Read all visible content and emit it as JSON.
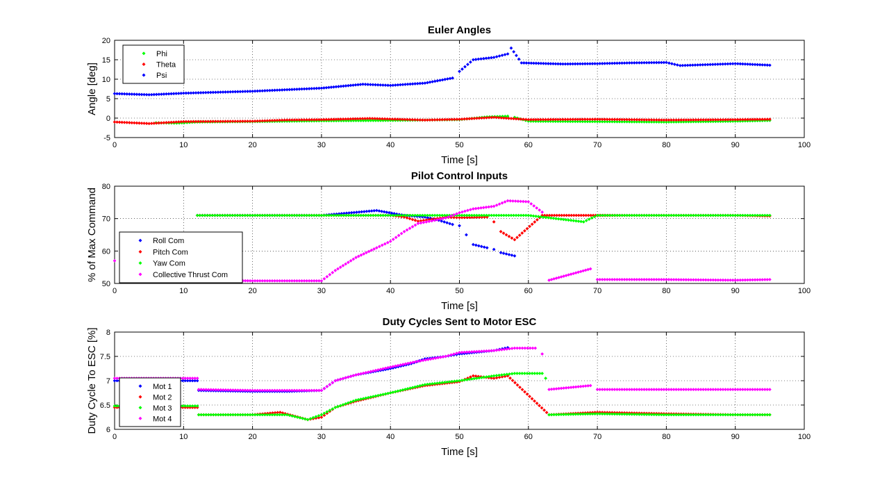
{
  "chart_data": [
    {
      "type": "scatter",
      "title": "Euler Angles",
      "xlabel": "Time [s]",
      "ylabel": "Angle [deg]",
      "xlim": [
        0,
        100
      ],
      "ylim": [
        -5,
        20
      ],
      "xticks": [
        0,
        10,
        20,
        30,
        40,
        50,
        60,
        70,
        80,
        90,
        100
      ],
      "yticks": [
        -5,
        0,
        5,
        10,
        15,
        20
      ],
      "grid": true,
      "legend_position": "top-left",
      "series": [
        {
          "name": "Phi",
          "color": "#00ff00",
          "points": [
            [
              6,
              -1.2
            ],
            [
              9,
              -1.3
            ],
            [
              12,
              -1.0
            ],
            [
              20,
              -0.9
            ],
            [
              30,
              -0.7
            ],
            [
              40,
              -0.6
            ],
            [
              50,
              -0.4
            ],
            [
              54,
              0.3
            ],
            [
              57,
              0.5
            ],
            [
              58,
              0.2
            ],
            [
              60,
              -0.8
            ],
            [
              70,
              -0.9
            ],
            [
              80,
              -1.0
            ],
            [
              90,
              -0.8
            ],
            [
              95,
              -0.6
            ]
          ]
        },
        {
          "name": "Theta",
          "color": "#ff0000",
          "points": [
            [
              0,
              -1.0
            ],
            [
              5,
              -1.4
            ],
            [
              10,
              -0.9
            ],
            [
              20,
              -0.8
            ],
            [
              25,
              -0.5
            ],
            [
              30,
              -0.4
            ],
            [
              37,
              -0.1
            ],
            [
              45,
              -0.5
            ],
            [
              50,
              -0.3
            ],
            [
              55,
              0.2
            ],
            [
              60,
              -0.4
            ],
            [
              70,
              -0.3
            ],
            [
              80,
              -0.5
            ],
            [
              90,
              -0.4
            ],
            [
              95,
              -0.3
            ]
          ]
        },
        {
          "name": "Psi",
          "color": "#0000ff",
          "points": [
            [
              0,
              6.3
            ],
            [
              5,
              6.0
            ],
            [
              10,
              6.4
            ],
            [
              20,
              6.9
            ],
            [
              30,
              7.7
            ],
            [
              36,
              8.7
            ],
            [
              40,
              8.4
            ],
            [
              45,
              9.0
            ],
            [
              49,
              10.3
            ],
            [
              50,
              12.0
            ],
            [
              52,
              15.0
            ],
            [
              55,
              15.6
            ],
            [
              57,
              16.5
            ],
            [
              57.5,
              18.0
            ],
            [
              59,
              14.2
            ],
            [
              65,
              13.9
            ],
            [
              70,
              14.0
            ],
            [
              75,
              14.2
            ],
            [
              80,
              14.3
            ],
            [
              82,
              13.5
            ],
            [
              90,
              14.0
            ],
            [
              95,
              13.6
            ]
          ]
        }
      ]
    },
    {
      "type": "scatter",
      "title": "Pilot Control Inputs",
      "xlabel": "Time [s]",
      "ylabel": "% of Max Command",
      "xlim": [
        0,
        100
      ],
      "ylim": [
        50,
        80
      ],
      "xticks": [
        0,
        10,
        20,
        30,
        40,
        50,
        60,
        70,
        80,
        90,
        100
      ],
      "yticks": [
        50,
        60,
        70,
        80
      ],
      "grid": true,
      "legend_position": "bottom-left",
      "series": [
        {
          "name": "Roll Com",
          "color": "#0000ff",
          "points": [
            [
              12,
              71
            ],
            [
              20,
              71
            ],
            [
              30,
              71
            ],
            [
              38,
              72.5
            ],
            [
              42,
              71
            ],
            [
              45,
              70.5
            ],
            [
              47,
              69.5
            ],
            [
              49,
              68.2
            ],
            [
              50,
              67.8
            ],
            [
              51,
              65
            ],
            [
              52,
              62
            ],
            [
              54,
              61
            ],
            [
              55,
              60.5
            ],
            [
              56,
              59.5
            ],
            [
              58,
              58.5
            ]
          ]
        },
        {
          "name": "Pitch Com",
          "color": "#ff0000",
          "points": [
            [
              12,
              71
            ],
            [
              20,
              71
            ],
            [
              30,
              71
            ],
            [
              40,
              71
            ],
            [
              42,
              70.5
            ],
            [
              44,
              69.2
            ],
            [
              46,
              69.8
            ],
            [
              48,
              70.4
            ],
            [
              50,
              70.3
            ],
            [
              54,
              70.5
            ],
            [
              55,
              69
            ],
            [
              56,
              66
            ],
            [
              58,
              63.5
            ],
            [
              62,
              71
            ],
            [
              68,
              71
            ],
            [
              75,
              71
            ],
            [
              80,
              71
            ],
            [
              90,
              71
            ],
            [
              95,
              70.8
            ]
          ]
        },
        {
          "name": "Yaw Com",
          "color": "#00ff00",
          "points": [
            [
              12,
              71
            ],
            [
              20,
              71
            ],
            [
              30,
              71
            ],
            [
              40,
              71
            ],
            [
              50,
              71
            ],
            [
              60,
              71
            ],
            [
              68,
              69
            ],
            [
              70,
              71
            ],
            [
              80,
              71
            ],
            [
              90,
              71
            ],
            [
              95,
              71
            ]
          ]
        },
        {
          "name": "Collective Thrust Com",
          "color": "#ff00ff",
          "points": [
            [
              0,
              57
            ],
            [
              13,
              51
            ],
            [
              20,
              50.8
            ],
            [
              30,
              50.8
            ],
            [
              32,
              54
            ],
            [
              35,
              58
            ],
            [
              38,
              61
            ],
            [
              40,
              63
            ],
            [
              42,
              66
            ],
            [
              44,
              68.5
            ],
            [
              46,
              69.3
            ],
            [
              48,
              70.2
            ],
            [
              50,
              71.8
            ],
            [
              52,
              73
            ],
            [
              55,
              73.8
            ],
            [
              57,
              75.5
            ],
            [
              60,
              75.2
            ],
            [
              62,
              72
            ],
            [
              63,
              51
            ],
            [
              69,
              54.5
            ],
            [
              70,
              51.2
            ],
            [
              80,
              51.2
            ],
            [
              90,
              51
            ],
            [
              95,
              51.2
            ]
          ]
        }
      ]
    },
    {
      "type": "scatter",
      "title": "Duty Cycles Sent to Motor ESC",
      "xlabel": "Time [s]",
      "ylabel": "Duty Cycle To ESC [%]",
      "xlim": [
        0,
        100
      ],
      "ylim": [
        6,
        8
      ],
      "xticks": [
        0,
        10,
        20,
        30,
        40,
        50,
        60,
        70,
        80,
        90,
        100
      ],
      "yticks": [
        6,
        6.5,
        7,
        7.5,
        8
      ],
      "grid": true,
      "legend_position": "bottom-left",
      "series": [
        {
          "name": "Mot 1",
          "color": "#0000ff",
          "points": [
            [
              0,
              7.0
            ],
            [
              12,
              7.0
            ],
            [
              12.2,
              6.8
            ],
            [
              20,
              6.78
            ],
            [
              25,
              6.78
            ],
            [
              30,
              6.8
            ],
            [
              32,
              7.0
            ],
            [
              35,
              7.12
            ],
            [
              40,
              7.25
            ],
            [
              43,
              7.35
            ],
            [
              45,
              7.45
            ],
            [
              48,
              7.5
            ],
            [
              50,
              7.55
            ],
            [
              55,
              7.62
            ],
            [
              57,
              7.68
            ]
          ]
        },
        {
          "name": "Mot 2",
          "color": "#ff0000",
          "points": [
            [
              0,
              6.45
            ],
            [
              12,
              6.45
            ],
            [
              12.2,
              6.3
            ],
            [
              20,
              6.3
            ],
            [
              24,
              6.35
            ],
            [
              28,
              6.2
            ],
            [
              30,
              6.25
            ],
            [
              32,
              6.45
            ],
            [
              35,
              6.58
            ],
            [
              40,
              6.75
            ],
            [
              45,
              6.9
            ],
            [
              50,
              6.98
            ],
            [
              52,
              7.1
            ],
            [
              55,
              7.05
            ],
            [
              57,
              7.1
            ],
            [
              63,
              6.3
            ],
            [
              70,
              6.35
            ],
            [
              80,
              6.32
            ],
            [
              90,
              6.3
            ],
            [
              95,
              6.3
            ]
          ]
        },
        {
          "name": "Mot 3",
          "color": "#00ff00",
          "points": [
            [
              0,
              6.48
            ],
            [
              12,
              6.48
            ],
            [
              12.2,
              6.3
            ],
            [
              20,
              6.3
            ],
            [
              25,
              6.3
            ],
            [
              28,
              6.2
            ],
            [
              30,
              6.3
            ],
            [
              32,
              6.45
            ],
            [
              35,
              6.6
            ],
            [
              40,
              6.75
            ],
            [
              45,
              6.92
            ],
            [
              50,
              7.0
            ],
            [
              55,
              7.1
            ],
            [
              58,
              7.15
            ],
            [
              62,
              7.15
            ],
            [
              62.5,
              7.05
            ],
            [
              63,
              6.3
            ],
            [
              70,
              6.32
            ],
            [
              80,
              6.3
            ],
            [
              90,
              6.3
            ],
            [
              95,
              6.3
            ]
          ]
        },
        {
          "name": "Mot 4",
          "color": "#ff00ff",
          "points": [
            [
              0,
              7.05
            ],
            [
              12,
              7.05
            ],
            [
              12.2,
              6.82
            ],
            [
              20,
              6.8
            ],
            [
              25,
              6.8
            ],
            [
              30,
              6.8
            ],
            [
              32,
              7.0
            ],
            [
              35,
              7.12
            ],
            [
              40,
              7.28
            ],
            [
              44,
              7.4
            ],
            [
              48,
              7.5
            ],
            [
              50,
              7.58
            ],
            [
              55,
              7.62
            ],
            [
              58,
              7.67
            ],
            [
              61,
              7.67
            ],
            [
              62,
              7.55
            ],
            [
              63,
              6.82
            ],
            [
              69,
              6.9
            ],
            [
              70,
              6.82
            ],
            [
              80,
              6.82
            ],
            [
              90,
              6.82
            ],
            [
              95,
              6.82
            ]
          ]
        }
      ]
    }
  ]
}
